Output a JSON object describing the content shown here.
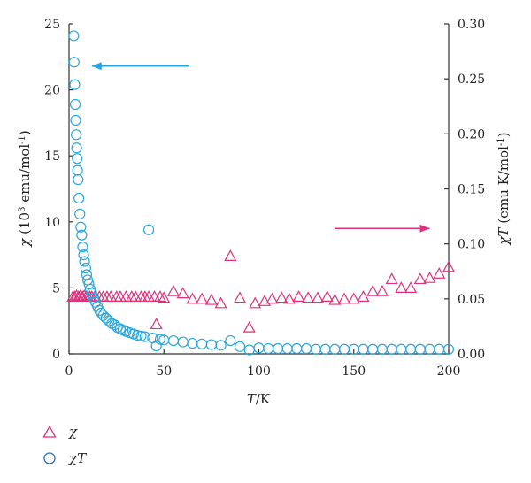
{
  "chart_data": {
    "type": "scatter",
    "x_axis": {
      "label_italic": "T",
      "label_rest": "/K",
      "range": [
        0,
        200
      ],
      "ticks": [
        "0",
        "50",
        "100",
        "150",
        "200"
      ]
    },
    "y_left": {
      "label_sym": "χ",
      "label_main": "(10",
      "label_sup": "3",
      "label_unit": " emu/mol",
      "label_sup2": "-1",
      "label_end": ")",
      "range": [
        0,
        25
      ],
      "ticks": [
        "0",
        "5",
        "10",
        "15",
        "20",
        "25"
      ]
    },
    "y_right": {
      "label_sym": "χT",
      "label_unit": " (emu K/mol",
      "label_sup": "-1",
      "label_end": ")",
      "range": [
        0,
        0.3
      ],
      "ticks": [
        "0.00",
        "0.05",
        "0.10",
        "0.15",
        "0.20",
        "0.25",
        "0.30"
      ]
    },
    "series": [
      {
        "name": "χ",
        "marker": "triangle",
        "axis": "right",
        "color": "#e0307a",
        "points": [
          [
            2,
            0.052
          ],
          [
            3,
            0.052
          ],
          [
            4,
            0.053
          ],
          [
            5,
            0.052
          ],
          [
            6,
            0.053
          ],
          [
            7,
            0.052
          ],
          [
            8,
            0.053
          ],
          [
            9,
            0.052
          ],
          [
            10,
            0.052
          ],
          [
            11,
            0.052
          ],
          [
            12,
            0.052
          ],
          [
            14,
            0.052
          ],
          [
            16,
            0.052
          ],
          [
            18,
            0.052
          ],
          [
            20,
            0.052
          ],
          [
            22,
            0.052
          ],
          [
            25,
            0.052
          ],
          [
            27,
            0.052
          ],
          [
            30,
            0.052
          ],
          [
            33,
            0.052
          ],
          [
            35,
            0.052
          ],
          [
            38,
            0.052
          ],
          [
            40,
            0.052
          ],
          [
            42,
            0.052
          ],
          [
            45,
            0.052
          ],
          [
            46,
            0.027
          ],
          [
            48,
            0.052
          ],
          [
            50,
            0.051
          ],
          [
            55,
            0.057
          ],
          [
            60,
            0.055
          ],
          [
            65,
            0.05
          ],
          [
            70,
            0.05
          ],
          [
            75,
            0.049
          ],
          [
            80,
            0.046
          ],
          [
            85,
            0.089
          ],
          [
            90,
            0.051
          ],
          [
            95,
            0.024
          ],
          [
            98,
            0.046
          ],
          [
            103,
            0.048
          ],
          [
            107,
            0.05
          ],
          [
            112,
            0.051
          ],
          [
            116,
            0.05
          ],
          [
            121,
            0.052
          ],
          [
            126,
            0.051
          ],
          [
            131,
            0.051
          ],
          [
            136,
            0.052
          ],
          [
            140,
            0.049
          ],
          [
            145,
            0.05
          ],
          [
            150,
            0.05
          ],
          [
            155,
            0.052
          ],
          [
            160,
            0.057
          ],
          [
            165,
            0.057
          ],
          [
            170,
            0.068
          ],
          [
            175,
            0.06
          ],
          [
            180,
            0.06
          ],
          [
            185,
            0.068
          ],
          [
            190,
            0.069
          ],
          [
            195,
            0.073
          ],
          [
            200,
            0.079
          ]
        ]
      },
      {
        "name": "χT",
        "marker": "circle",
        "axis": "left",
        "color": "#2aa6dc",
        "points": [
          [
            2.5,
            24.1
          ],
          [
            2.7,
            22.1
          ],
          [
            3,
            20.4
          ],
          [
            3.3,
            18.9
          ],
          [
            3.5,
            17.7
          ],
          [
            3.8,
            16.6
          ],
          [
            4,
            15.6
          ],
          [
            4.3,
            14.8
          ],
          [
            4.5,
            13.9
          ],
          [
            4.8,
            13.2
          ],
          [
            5.2,
            11.8
          ],
          [
            5.7,
            10.6
          ],
          [
            6.2,
            9.6
          ],
          [
            6.7,
            9.0
          ],
          [
            7.2,
            8.1
          ],
          [
            7.7,
            7.5
          ],
          [
            8.2,
            7.0
          ],
          [
            8.8,
            6.5
          ],
          [
            9.3,
            6.0
          ],
          [
            9.8,
            5.6
          ],
          [
            10.5,
            5.3
          ],
          [
            11.2,
            4.9
          ],
          [
            12,
            4.6
          ],
          [
            13,
            4.2
          ],
          [
            14,
            3.9
          ],
          [
            15,
            3.6
          ],
          [
            16,
            3.3
          ],
          [
            17,
            3.1
          ],
          [
            18,
            2.9
          ],
          [
            19.5,
            2.7
          ],
          [
            21,
            2.5
          ],
          [
            22.5,
            2.3
          ],
          [
            24,
            2.2
          ],
          [
            25.5,
            2.0
          ],
          [
            27,
            1.9
          ],
          [
            28.5,
            1.8
          ],
          [
            30,
            1.7
          ],
          [
            32,
            1.6
          ],
          [
            34,
            1.5
          ],
          [
            36,
            1.4
          ],
          [
            38,
            1.35
          ],
          [
            40,
            1.3
          ],
          [
            42,
            9.4
          ],
          [
            44,
            1.2
          ],
          [
            46,
            0.6
          ],
          [
            48,
            1.1
          ],
          [
            50,
            1.05
          ],
          [
            55,
            1.0
          ],
          [
            60,
            0.9
          ],
          [
            65,
            0.8
          ],
          [
            70,
            0.75
          ],
          [
            75,
            0.7
          ],
          [
            80,
            0.65
          ],
          [
            85,
            1.0
          ],
          [
            90,
            0.55
          ],
          [
            95,
            0.3
          ],
          [
            100,
            0.45
          ],
          [
            105,
            0.4
          ],
          [
            110,
            0.4
          ],
          [
            115,
            0.4
          ],
          [
            120,
            0.4
          ],
          [
            125,
            0.4
          ],
          [
            130,
            0.35
          ],
          [
            135,
            0.35
          ],
          [
            140,
            0.35
          ],
          [
            145,
            0.35
          ],
          [
            150,
            0.35
          ],
          [
            155,
            0.35
          ],
          [
            160,
            0.35
          ],
          [
            165,
            0.35
          ],
          [
            170,
            0.35
          ],
          [
            175,
            0.35
          ],
          [
            180,
            0.35
          ],
          [
            185,
            0.35
          ],
          [
            190,
            0.35
          ],
          [
            195,
            0.35
          ],
          [
            200,
            0.35
          ]
        ]
      }
    ],
    "annotations": [
      {
        "type": "arrow",
        "color": "#2aa6dc",
        "from": [
          63,
          21.8
        ],
        "to": [
          12,
          21.8
        ],
        "axis": "left"
      },
      {
        "type": "arrow",
        "color": "#e0307a",
        "from": [
          140,
          0.114
        ],
        "to": [
          190,
          0.114
        ],
        "axis": "right"
      }
    ],
    "legend": {
      "position": "bottom-left",
      "entries": [
        "χ",
        "χT"
      ]
    },
    "grid": false
  }
}
